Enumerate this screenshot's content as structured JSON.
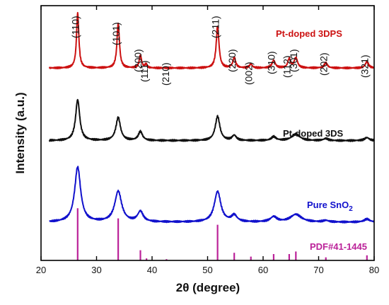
{
  "chart_data": {
    "type": "line",
    "xlabel": "2θ (degree)",
    "ylabel": "Intensity (a.u.)",
    "xlim": [
      20,
      80
    ],
    "xticks": [
      20,
      30,
      40,
      50,
      60,
      70,
      80
    ],
    "grid": false,
    "peak_labels": [
      {
        "text": "(110)",
        "x": 26.6
      },
      {
        "text": "(101)",
        "x": 33.9
      },
      {
        "text": "(200)",
        "x": 37.9
      },
      {
        "text": "(111)",
        "x": 39.0
      },
      {
        "text": "(210)",
        "x": 42.6
      },
      {
        "text": "(211)",
        "x": 51.8
      },
      {
        "text": "(220)",
        "x": 54.8
      },
      {
        "text": "(002)",
        "x": 57.8
      },
      {
        "text": "(310)",
        "x": 61.9
      },
      {
        "text": "(112)",
        "x": 64.7
      },
      {
        "text": "(301)",
        "x": 65.9
      },
      {
        "text": "(202)",
        "x": 71.3
      },
      {
        "text": "(321)",
        "x": 78.7
      }
    ],
    "series": [
      {
        "name": "Pt-doped 3DPS",
        "color": "#cc1111",
        "baseline": 0.755,
        "peaks": [
          {
            "x": 26.6,
            "h": 0.215,
            "w": 0.25
          },
          {
            "x": 33.9,
            "h": 0.175,
            "w": 0.27
          },
          {
            "x": 37.9,
            "h": 0.05,
            "w": 0.25
          },
          {
            "x": 38.9,
            "h": 0.015,
            "w": 0.2
          },
          {
            "x": 51.8,
            "h": 0.165,
            "w": 0.3
          },
          {
            "x": 54.8,
            "h": 0.04,
            "w": 0.3
          },
          {
            "x": 57.8,
            "h": 0.015,
            "w": 0.3
          },
          {
            "x": 61.9,
            "h": 0.03,
            "w": 0.35
          },
          {
            "x": 64.7,
            "h": 0.035,
            "w": 0.3
          },
          {
            "x": 65.9,
            "h": 0.04,
            "w": 0.35
          },
          {
            "x": 71.3,
            "h": 0.02,
            "w": 0.35
          },
          {
            "x": 78.7,
            "h": 0.025,
            "w": 0.35
          }
        ]
      },
      {
        "name": "Pt-doped 3DS",
        "color": "#111111",
        "baseline": 0.47,
        "peaks": [
          {
            "x": 26.6,
            "h": 0.16,
            "w": 0.45
          },
          {
            "x": 33.9,
            "h": 0.09,
            "w": 0.5
          },
          {
            "x": 37.9,
            "h": 0.035,
            "w": 0.45
          },
          {
            "x": 51.8,
            "h": 0.095,
            "w": 0.5
          },
          {
            "x": 54.8,
            "h": 0.02,
            "w": 0.45
          },
          {
            "x": 61.9,
            "h": 0.015,
            "w": 0.5
          },
          {
            "x": 65.9,
            "h": 0.025,
            "w": 0.9
          },
          {
            "x": 71.3,
            "h": 0.008,
            "w": 0.5
          },
          {
            "x": 78.7,
            "h": 0.012,
            "w": 0.5
          }
        ]
      },
      {
        "name": "Pure SnO2",
        "color": "#1111cc",
        "baseline": 0.15,
        "peaks": [
          {
            "x": 26.6,
            "h": 0.215,
            "w": 0.65
          },
          {
            "x": 33.9,
            "h": 0.12,
            "w": 0.75
          },
          {
            "x": 37.9,
            "h": 0.04,
            "w": 0.6
          },
          {
            "x": 51.8,
            "h": 0.12,
            "w": 0.7
          },
          {
            "x": 54.8,
            "h": 0.025,
            "w": 0.6
          },
          {
            "x": 61.9,
            "h": 0.02,
            "w": 0.7
          },
          {
            "x": 65.9,
            "h": 0.03,
            "w": 1.2
          },
          {
            "x": 71.3,
            "h": 0.006,
            "w": 0.6
          },
          {
            "x": 78.7,
            "h": 0.012,
            "w": 0.6
          }
        ]
      }
    ],
    "reference": {
      "name": "PDF#41-1445",
      "color": "#bb2299",
      "lines": [
        {
          "x": 26.6,
          "h": 0.205
        },
        {
          "x": 33.9,
          "h": 0.165
        },
        {
          "x": 37.9,
          "h": 0.04
        },
        {
          "x": 39.0,
          "h": 0.008
        },
        {
          "x": 42.6,
          "h": 0.005
        },
        {
          "x": 51.8,
          "h": 0.14
        },
        {
          "x": 54.8,
          "h": 0.03
        },
        {
          "x": 57.8,
          "h": 0.015
        },
        {
          "x": 61.9,
          "h": 0.025
        },
        {
          "x": 64.7,
          "h": 0.025
        },
        {
          "x": 65.9,
          "h": 0.035
        },
        {
          "x": 71.3,
          "h": 0.012
        },
        {
          "x": 78.7,
          "h": 0.02
        }
      ]
    }
  },
  "labels": {
    "series1": "Pt-doped 3DPS",
    "series2": "Pt-doped 3DS",
    "series3_main": "Pure SnO",
    "series3_sub": "2",
    "reference": "PDF#41-1445"
  },
  "colors": {
    "series1": "#cc1111",
    "series2": "#111111",
    "series3": "#1111cc",
    "reference": "#bb2299"
  }
}
